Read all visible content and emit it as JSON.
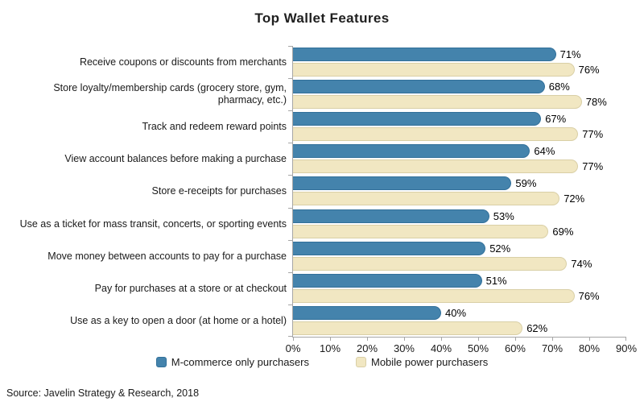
{
  "title": "Top Wallet Features",
  "source": "Source: Javelin Strategy & Research, 2018",
  "colors": {
    "series1_fill": "#4483ac",
    "series1_border": "#32709a",
    "series2_fill": "#f1e7c2",
    "series2_border": "#d9cfa6",
    "axis": "#a6a6a6",
    "text": "#1a1a1a"
  },
  "chart_data": {
    "type": "bar",
    "orientation": "horizontal",
    "title": "Top Wallet Features",
    "categories": [
      "Receive coupons or discounts from merchants",
      "Store loyalty/membership cards (grocery store, gym, pharmacy, etc.)",
      "Track and redeem reward points",
      "View account balances before making a purchase",
      "Store e-receipts for purchases",
      "Use as a ticket for mass transit, concerts, or sporting events",
      "Move money between accounts to pay for a purchase",
      "Pay for purchases at a store or at checkout",
      "Use as a key to open a door (at home or a hotel)"
    ],
    "series": [
      {
        "name": "M-commerce only purchasers",
        "values": [
          71,
          68,
          67,
          64,
          59,
          53,
          52,
          51,
          40
        ]
      },
      {
        "name": "Mobile power purchasers",
        "values": [
          76,
          78,
          77,
          77,
          72,
          69,
          74,
          76,
          62
        ]
      }
    ],
    "value_suffix": "%",
    "xlim": [
      0,
      90
    ],
    "x_ticks": [
      "0%",
      "10%",
      "20%",
      "30%",
      "40%",
      "50%",
      "60%",
      "70%",
      "80%",
      "90%"
    ],
    "grid": false,
    "legend_position": "bottom",
    "data_labels": true
  }
}
